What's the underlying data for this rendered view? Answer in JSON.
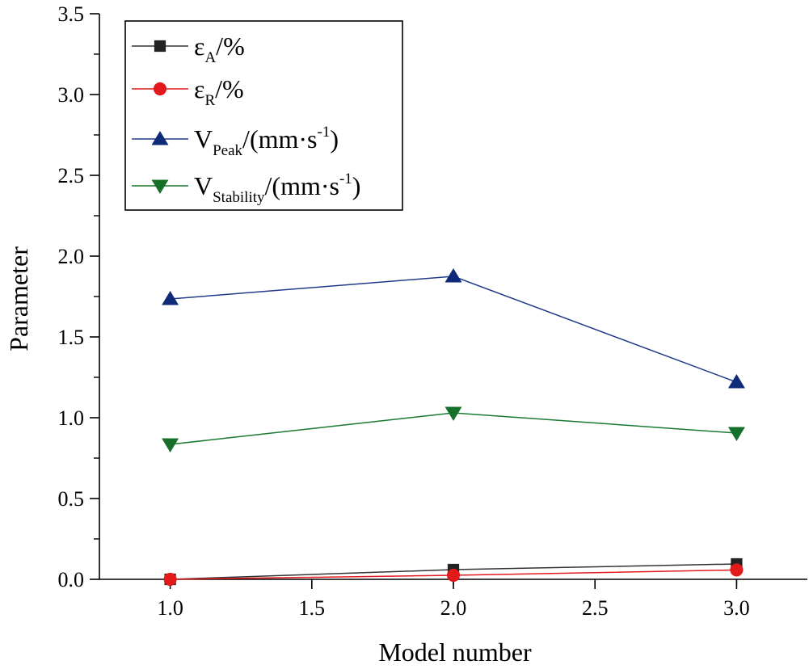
{
  "chart_data": {
    "type": "line",
    "title": "",
    "xlabel": "Model number",
    "ylabel": "Parameter",
    "xlim": [
      0.75,
      3.25
    ],
    "ylim": [
      0,
      3.5
    ],
    "x": [
      1.0,
      2.0,
      3.0
    ],
    "xticks": [
      "1.0",
      "1.5",
      "2.0",
      "2.5",
      "3.0"
    ],
    "yticks": [
      "0.0",
      "0.5",
      "1.0",
      "1.5",
      "2.0",
      "2.5",
      "3.0",
      "3.5"
    ],
    "grid": false,
    "legend_position": "top-left",
    "series": [
      {
        "name": "εA/%",
        "legend": {
          "main": "ε",
          "sub": "A",
          "tail": "/%",
          "sup": "",
          "close": ""
        },
        "marker": "square",
        "color": "#333333",
        "marker_color": "#222222",
        "values": [
          0.0,
          0.06,
          0.095
        ]
      },
      {
        "name": "εR/%",
        "legend": {
          "main": "ε",
          "sub": "R",
          "tail": "/%",
          "sup": "",
          "close": ""
        },
        "marker": "circle",
        "color": "#e31a1c",
        "marker_color": "#e31a1c",
        "values": [
          0.0,
          0.025,
          0.058
        ]
      },
      {
        "name": "VPeak/(mm·s-1)",
        "legend": {
          "main": "V",
          "sub": "Peak",
          "tail": "/(mm·s",
          "sup": "-1",
          "close": ")"
        },
        "marker": "triangle-up",
        "color": "#1f3a8a",
        "marker_color": "#102a7a",
        "values": [
          1.735,
          1.875,
          1.22
        ]
      },
      {
        "name": "VStability/(mm·s-1)",
        "legend": {
          "main": "V",
          "sub": "Stability",
          "tail": "/(mm·s",
          "sup": "-1",
          "close": ")"
        },
        "marker": "triangle-down",
        "color": "#1b7a2e",
        "marker_color": "#16702a",
        "values": [
          0.835,
          1.03,
          0.905
        ]
      }
    ]
  }
}
